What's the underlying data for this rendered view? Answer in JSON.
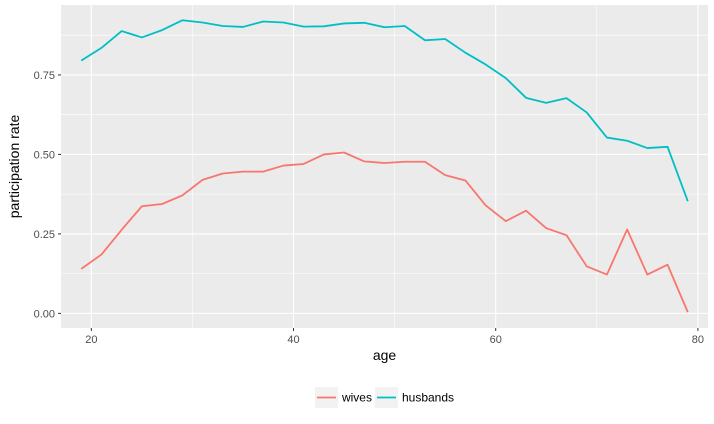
{
  "chart_data": {
    "type": "line",
    "xlabel": "age",
    "ylabel": "participation rate",
    "xlim": [
      17.0,
      81.0
    ],
    "ylim": [
      -0.046,
      0.97
    ],
    "x_ticks": [
      20,
      40,
      60,
      80
    ],
    "x_tick_labels": [
      "20",
      "40",
      "60",
      "80"
    ],
    "y_ticks": [
      0,
      0.25,
      0.5,
      0.75
    ],
    "y_tick_labels": [
      "0.00",
      "0.25",
      "0.50",
      "0.75"
    ],
    "grid": true,
    "panel_background": "#ebebeb",
    "legend_position": "bottom",
    "x": [
      19,
      21,
      23,
      25,
      27,
      29,
      31,
      33,
      35,
      37,
      39,
      41,
      43,
      45,
      47,
      49,
      51,
      53,
      55,
      57,
      59,
      61,
      63,
      65,
      67,
      69,
      71,
      73,
      75,
      77,
      79
    ],
    "series": [
      {
        "name": "wives",
        "color": "#f8766d",
        "values": [
          0.14,
          0.185,
          0.263,
          0.337,
          0.344,
          0.371,
          0.42,
          0.44,
          0.446,
          0.446,
          0.465,
          0.47,
          0.5,
          0.506,
          0.478,
          0.473,
          0.477,
          0.477,
          0.435,
          0.418,
          0.34,
          0.29,
          0.323,
          0.268,
          0.246,
          0.148,
          0.122,
          0.264,
          0.122,
          0.153,
          0.004
        ]
      },
      {
        "name": "husbands",
        "color": "#00bfc4",
        "values": [
          0.795,
          0.835,
          0.888,
          0.868,
          0.891,
          0.922,
          0.915,
          0.904,
          0.901,
          0.918,
          0.915,
          0.902,
          0.903,
          0.912,
          0.914,
          0.9,
          0.904,
          0.859,
          0.863,
          0.82,
          0.783,
          0.74,
          0.678,
          0.662,
          0.677,
          0.632,
          0.553,
          0.543,
          0.52,
          0.524,
          0.353
        ]
      }
    ]
  }
}
